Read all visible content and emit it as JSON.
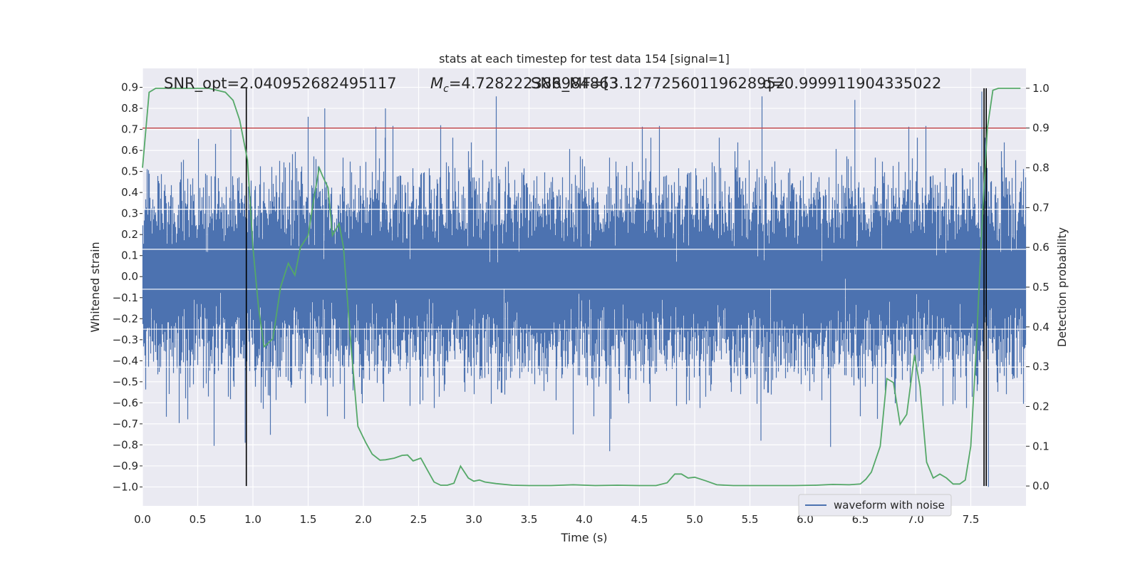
{
  "chart_data": {
    "type": "line",
    "title": "stats at each timestep for test data 154 [signal=1]",
    "xlabel": "Time (s)",
    "ylabel": "Whitened strain",
    "ylabel_right": "Detection probability",
    "xlim": [
      0.0,
      8.0
    ],
    "ylim": [
      -1.09,
      0.99
    ],
    "ylim_right": [
      -0.05,
      1.05
    ],
    "x_ticks": [
      "0.0",
      "0.5",
      "1.0",
      "1.5",
      "2.0",
      "2.5",
      "3.0",
      "3.5",
      "4.0",
      "4.5",
      "5.0",
      "5.5",
      "6.0",
      "6.5",
      "7.0",
      "7.5"
    ],
    "y_ticks": [
      "0.9",
      "0.8",
      "0.7",
      "0.6",
      "0.5",
      "0.4",
      "0.3",
      "0.2",
      "0.1",
      "0.0",
      "−0.1",
      "−0.2",
      "−0.3",
      "−0.4",
      "−0.5",
      "−0.6",
      "−0.7",
      "−0.8",
      "−0.9",
      "−1.0"
    ],
    "y_ticks_right": [
      "1.0",
      "0.9",
      "0.8",
      "0.7",
      "0.6",
      "0.5",
      "0.4",
      "0.3",
      "0.2",
      "0.1",
      "0.0"
    ],
    "grid": true,
    "legend": {
      "position": "lower-right",
      "entries": [
        "waveform with noise"
      ]
    },
    "annotations": {
      "snr_opt": "SNR_opt=2.040952682495117",
      "mc_symbol": "M",
      "mc_sub": "c",
      "mc_value": "=4.728222386984863",
      "snr_mf": "SNR_MF=[3.12772560119628952",
      "q": "q=0.999911904335022"
    },
    "threshold": 0.9,
    "vertical_markers": [
      0.94,
      7.62,
      7.64
    ],
    "series": [
      {
        "name": "waveform with noise",
        "color": "#4c72b0",
        "sample_rate_hz": 2048,
        "envelope_sigma": 0.2,
        "spike_peaks": [
          [
            0.8,
            0.7
          ],
          [
            0.93,
            -0.79
          ],
          [
            1.5,
            0.76
          ],
          [
            1.65,
            0.8
          ],
          [
            2.2,
            0.8
          ],
          [
            2.7,
            0.72
          ],
          [
            3.9,
            -0.75
          ],
          [
            4.23,
            -0.83
          ],
          [
            5.6,
            -0.78
          ],
          [
            6.45,
            0.84
          ],
          [
            6.23,
            -0.81
          ],
          [
            7.66,
            -1.0
          ],
          [
            7.6,
            0.88
          ]
        ]
      },
      {
        "name": "",
        "axis": "right",
        "color": "#55a868",
        "x": [
          0.0,
          0.06,
          0.12,
          0.25,
          0.45,
          0.6,
          0.75,
          0.82,
          0.88,
          0.95,
          1.0,
          1.05,
          1.1,
          1.18,
          1.25,
          1.32,
          1.38,
          1.43,
          1.5,
          1.55,
          1.6,
          1.63,
          1.68,
          1.72,
          1.78,
          1.82,
          1.88,
          1.95,
          2.02,
          2.08,
          2.15,
          2.2,
          2.28,
          2.35,
          2.4,
          2.45,
          2.52,
          2.58,
          2.64,
          2.7,
          2.76,
          2.82,
          2.88,
          2.95,
          3.0,
          3.05,
          3.1,
          3.2,
          3.35,
          3.5,
          3.7,
          3.9,
          4.1,
          4.3,
          4.5,
          4.65,
          4.75,
          4.82,
          4.88,
          4.94,
          5.0,
          5.1,
          5.2,
          5.35,
          5.5,
          5.7,
          5.9,
          6.1,
          6.25,
          6.4,
          6.5,
          6.55,
          6.6,
          6.68,
          6.74,
          6.8,
          6.86,
          6.92,
          6.99,
          7.04,
          7.1,
          7.16,
          7.22,
          7.28,
          7.34,
          7.4,
          7.45,
          7.5,
          7.55,
          7.6,
          7.65,
          7.7,
          7.75,
          7.8,
          7.95
        ],
        "y": [
          0.8,
          0.99,
          1.0,
          1.0,
          1.0,
          1.0,
          0.99,
          0.97,
          0.92,
          0.82,
          0.6,
          0.45,
          0.35,
          0.37,
          0.5,
          0.56,
          0.53,
          0.6,
          0.63,
          0.72,
          0.8,
          0.78,
          0.75,
          0.63,
          0.66,
          0.6,
          0.38,
          0.15,
          0.11,
          0.08,
          0.065,
          0.066,
          0.07,
          0.077,
          0.078,
          0.063,
          0.07,
          0.04,
          0.01,
          0.002,
          0.002,
          0.007,
          0.05,
          0.02,
          0.012,
          0.015,
          0.01,
          0.006,
          0.002,
          0.001,
          0.001,
          0.003,
          0.001,
          0.002,
          0.001,
          0.001,
          0.008,
          0.03,
          0.03,
          0.02,
          0.022,
          0.013,
          0.003,
          0.001,
          0.001,
          0.001,
          0.001,
          0.002,
          0.004,
          0.003,
          0.005,
          0.017,
          0.035,
          0.1,
          0.27,
          0.26,
          0.155,
          0.18,
          0.33,
          0.25,
          0.06,
          0.02,
          0.03,
          0.02,
          0.005,
          0.005,
          0.015,
          0.1,
          0.35,
          0.65,
          0.9,
          0.995,
          1.0,
          1.0,
          1.0
        ]
      }
    ]
  }
}
